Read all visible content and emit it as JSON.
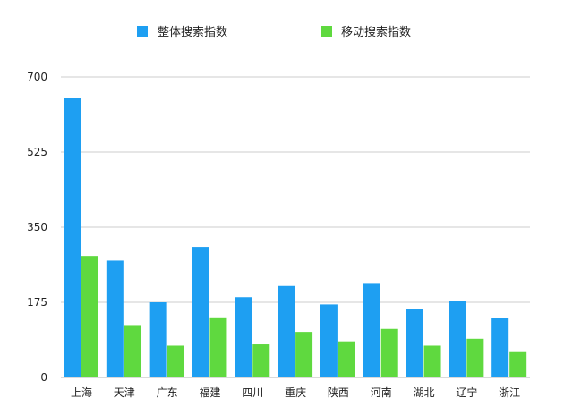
{
  "chart_data": {
    "type": "bar",
    "categories": [
      "上海",
      "天津",
      "广东",
      "福建",
      "四川",
      "重庆",
      "陕西",
      "河南",
      "湖北",
      "辽宁",
      "浙江"
    ],
    "series": [
      {
        "name": "整体搜索指数",
        "color": "#1E9FF2",
        "values": [
          652,
          272,
          175,
          304,
          187,
          213,
          170,
          220,
          159,
          178,
          138
        ]
      },
      {
        "name": "移动搜索指数",
        "color": "#5FD93F",
        "values": [
          283,
          122,
          74,
          140,
          77,
          106,
          84,
          113,
          74,
          90,
          61
        ]
      }
    ],
    "yticks": [
      "0",
      "175",
      "350",
      "525",
      "700"
    ],
    "ylim": [
      0,
      700
    ],
    "grid": true,
    "legend_position": "top-center"
  }
}
